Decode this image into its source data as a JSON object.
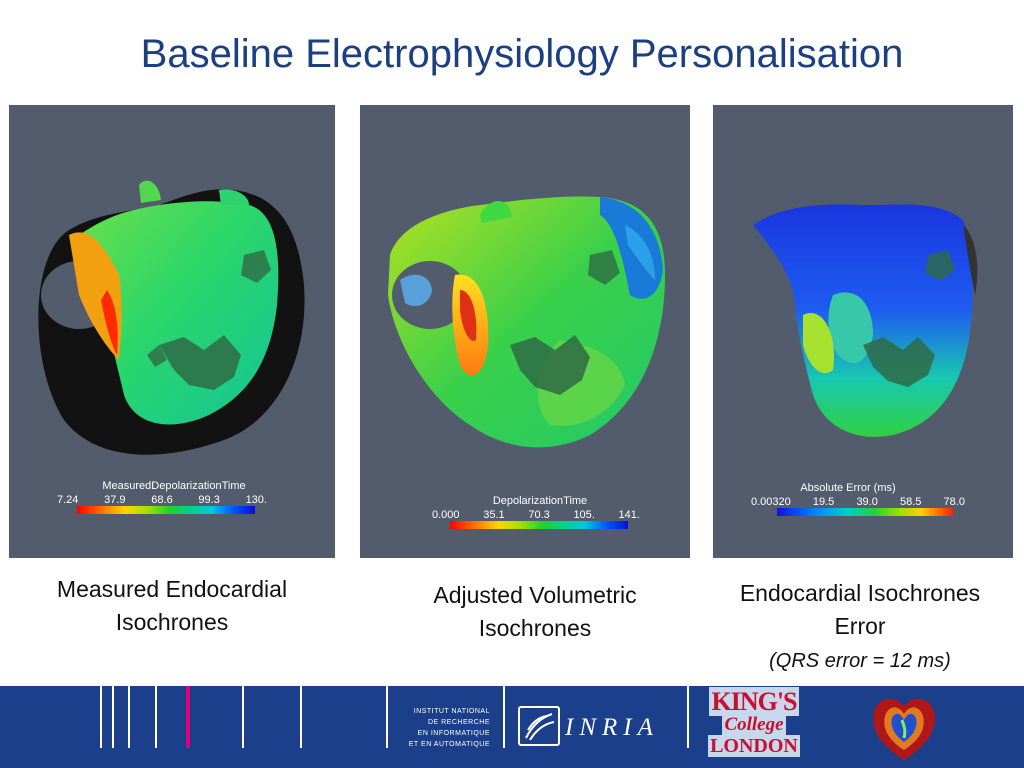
{
  "slide": {
    "title": "Baseline Electrophysiology Personalisation"
  },
  "panels": [
    {
      "colorbar_title": "MeasuredDepolarizationTime",
      "ticks": [
        "7.24",
        "37.9",
        "68.6",
        "99.3",
        "130."
      ]
    },
    {
      "colorbar_title": "DepolarizationTime",
      "ticks": [
        "0.000",
        "35.1",
        "70.3",
        "105.",
        "141."
      ]
    },
    {
      "colorbar_title": "Absolute Error (ms)",
      "ticks": [
        "0.00320",
        "19.5",
        "39.0",
        "58.5",
        "78.0"
      ]
    }
  ],
  "captions": {
    "c1_line1": "Measured Endocardial",
    "c1_line2": "Isochrones",
    "c2_line1": "Adjusted Volumetric",
    "c2_line2": "Isochrones",
    "c3_line1": "Endocardial Isochrones",
    "c3_line2": "Error",
    "c3_note": "(QRS error = 12 ms)"
  },
  "footer": {
    "institute_lines": [
      "INSTITUT NATIONAL",
      "DE RECHERCHE",
      "EN INFORMATIQUE",
      "ET EN AUTOMATIQUE"
    ],
    "inria": "INRIA",
    "kcl_line1": "KING'S",
    "kcl_line2": "College",
    "kcl_line3": "LONDON"
  },
  "colors": {
    "title": "#1c3f82",
    "panel_bg": "#535c6c",
    "footer_bg": "#1c3f8c",
    "accent_pink": "#e0007a",
    "kcl_red": "#c8102e"
  }
}
